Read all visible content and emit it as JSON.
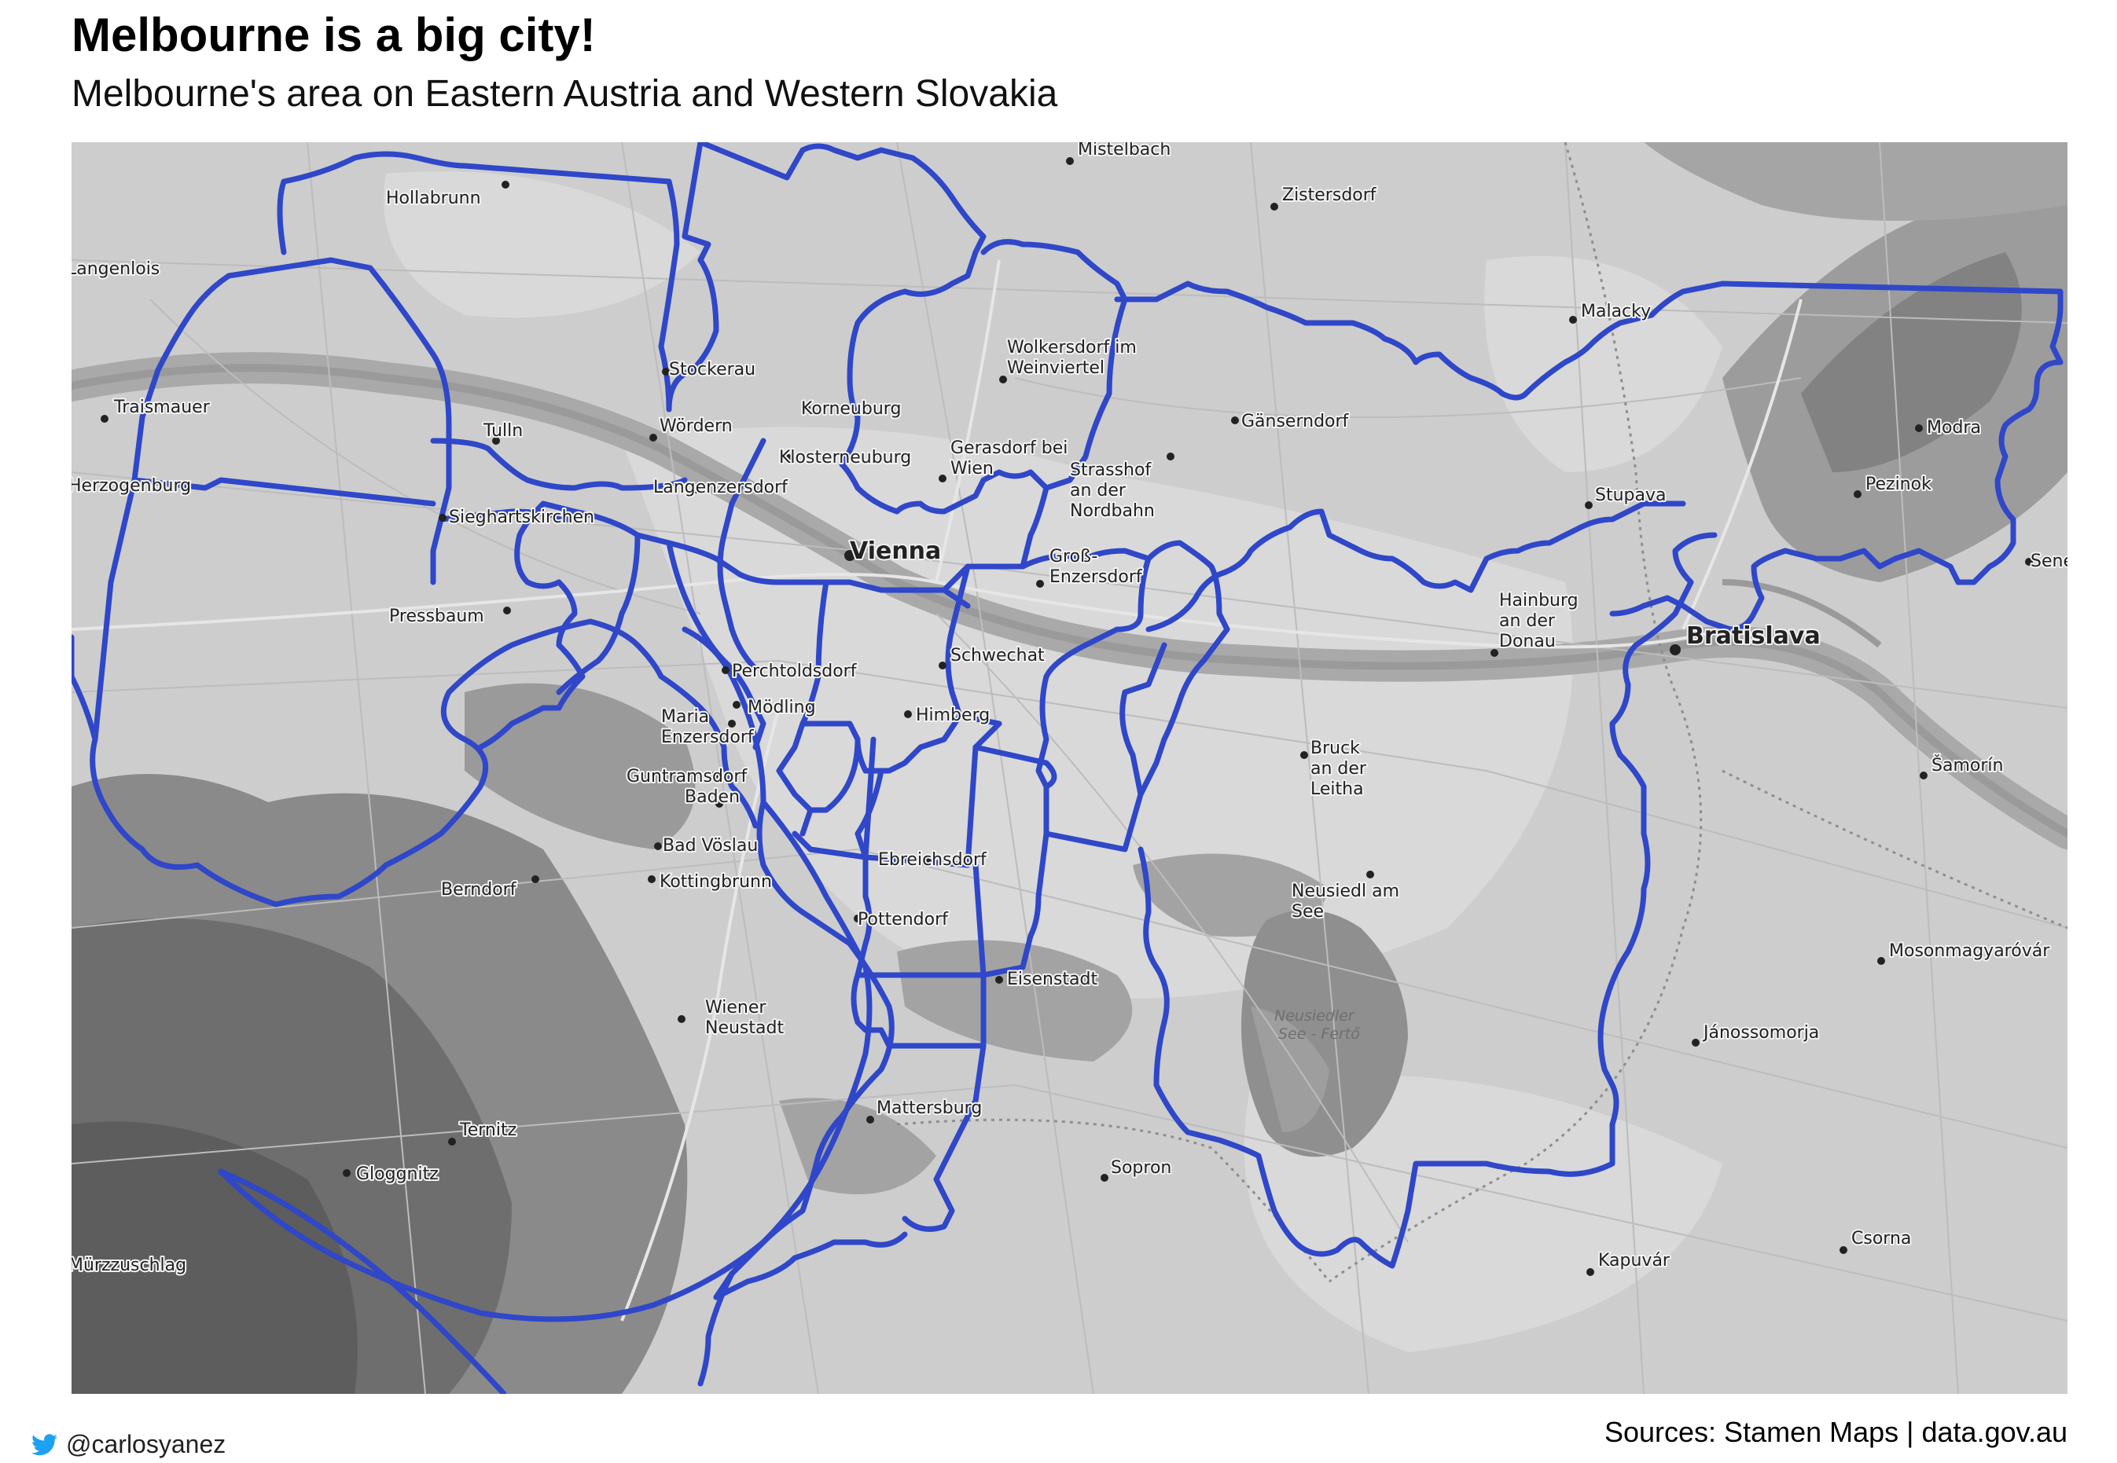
{
  "header": {
    "title": "Melbourne is a big city!",
    "subtitle": "Melbourne's area on Eastern Austria and Western Slovakia"
  },
  "map": {
    "basemap_style": "grayscale terrain",
    "overlay_color": "#2f47c8",
    "places": [
      "Mistelbach",
      "Zistersdorf",
      "Hollabrunn",
      "Langenlois",
      "Malacky",
      "Stockerau",
      "Wolkersdorf im Weinviertel",
      "Traismauer",
      "Korneuburg",
      "Gänserndorf",
      "Modra",
      "Tulln",
      "Wördern",
      "Klosterneuburg",
      "Gerasdorf bei Wien",
      "Strasshof an der Nordbahn",
      "Herzogenburg",
      "Pezinok",
      "Langenzersdorf",
      "Stupava",
      "Sieghartskirchen",
      "Vienna",
      "Groß-Enzersdorf",
      "Senec",
      "Pressbaum",
      "Hainburg an der Donau",
      "Bratislava",
      "Schwechat",
      "Perchtoldsdorf",
      "Mödling",
      "Himberg",
      "Maria Enzersdorf",
      "Bruck an der Leitha",
      "Šamorín",
      "Guntramsdorf",
      "Baden",
      "Bad Vöslau",
      "Ebreichsdorf",
      "Berndorf",
      "Kottingbrunn",
      "Neusiedl am See",
      "Pottendorf",
      "Mosonmagyaróvár",
      "Eisenstadt",
      "Wiener Neustadt",
      "Jánossomorja",
      "Mattersburg",
      "Ternitz",
      "Gloggnitz",
      "Sopron",
      "Csorna",
      "Mürzzuschlag",
      "Kapuvár"
    ],
    "lake_label": "Neusiedler See - Fertő"
  },
  "footer": {
    "twitter_handle": "@carlosyanez",
    "sources": "Sources: Stamen Maps | data.gov.au",
    "twitter_icon": "twitter-bird-icon",
    "twitter_color": "#1da1f2"
  }
}
